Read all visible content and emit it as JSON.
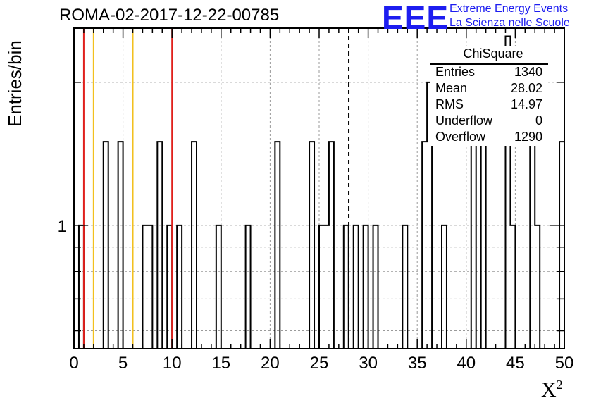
{
  "title": "ROMA-02-2017-12-22-00785",
  "ylabel": "Entries/bin",
  "xlabel_base": "X",
  "xlabel_sup": "2",
  "logo": {
    "mark": "EEE",
    "line1": "Extreme Energy Events",
    "line2": "La Scienza nelle Scuole",
    "color": "#1d1df0"
  },
  "stats": {
    "title": "ChiSquare",
    "rows": [
      {
        "label": "Entries",
        "value": "1340"
      },
      {
        "label": "Mean",
        "value": "28.02"
      },
      {
        "label": "RMS",
        "value": "14.97"
      },
      {
        "label": "Underflow",
        "value": "0"
      },
      {
        "label": "Overflow",
        "value": "1290"
      }
    ]
  },
  "chart_data": {
    "type": "histogram",
    "bin_width": 0.5,
    "x_range": [
      0,
      50
    ],
    "y_scale": "log",
    "y_range": [
      0.55,
      2.6
    ],
    "grid": true,
    "x_ticks": [
      0,
      5,
      10,
      15,
      20,
      25,
      30,
      35,
      40,
      45,
      50
    ],
    "y_tick_labels": [
      1
    ],
    "bins": [
      {
        "x": 0.5,
        "y": 1
      },
      {
        "x": 3.0,
        "y": 1.5
      },
      {
        "x": 4.5,
        "y": 1.5
      },
      {
        "x": 7.0,
        "y": 1
      },
      {
        "x": 7.5,
        "y": 1
      },
      {
        "x": 8.5,
        "y": 1.5
      },
      {
        "x": 9.5,
        "y": 1
      },
      {
        "x": 10.5,
        "y": 1
      },
      {
        "x": 12.0,
        "y": 1.5
      },
      {
        "x": 14.5,
        "y": 1
      },
      {
        "x": 17.5,
        "y": 1
      },
      {
        "x": 20.5,
        "y": 1.5
      },
      {
        "x": 24.0,
        "y": 1.5
      },
      {
        "x": 25.0,
        "y": 1
      },
      {
        "x": 25.5,
        "y": 1
      },
      {
        "x": 25.0,
        "y": 1
      },
      {
        "x": 26.0,
        "y": 1.5
      },
      {
        "x": 27.5,
        "y": 1
      },
      {
        "x": 28.5,
        "y": 1
      },
      {
        "x": 29.5,
        "y": 1
      },
      {
        "x": 30.5,
        "y": 1
      },
      {
        "x": 33.5,
        "y": 1
      },
      {
        "x": 35.5,
        "y": 1.5
      },
      {
        "x": 36.0,
        "y": 2
      },
      {
        "x": 37.5,
        "y": 1
      },
      {
        "x": 40.5,
        "y": 2
      },
      {
        "x": 41.5,
        "y": 1.5
      },
      {
        "x": 44.0,
        "y": 2.5
      },
      {
        "x": 44.5,
        "y": 1
      },
      {
        "x": 46.5,
        "y": 1.5
      },
      {
        "x": 47.0,
        "y": 1
      },
      {
        "x": 49.5,
        "y": 1.5
      }
    ],
    "red_lines": [
      1,
      10
    ],
    "yellow_lines": [
      2,
      6
    ],
    "mean_line": 28.02
  }
}
